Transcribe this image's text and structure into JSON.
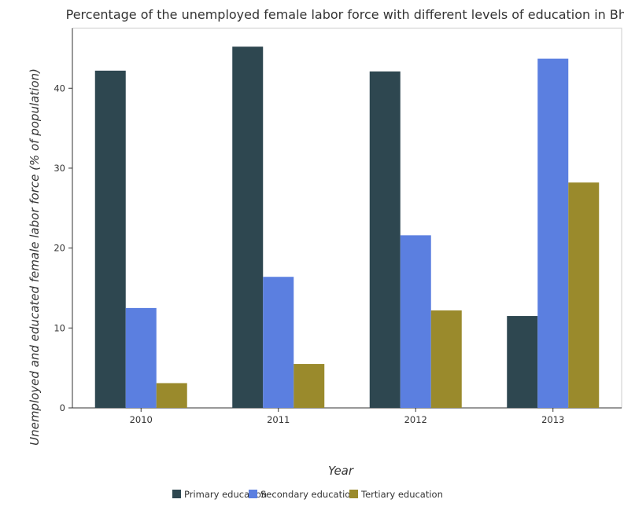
{
  "chart_data": {
    "type": "bar",
    "title": "Percentage of the unemployed female labor force with different levels of education in Bhutan",
    "xlabel": "Year",
    "ylabel": "Unemployed and educated female labor force (% of population)",
    "categories": [
      "2010",
      "2011",
      "2012",
      "2013"
    ],
    "series": [
      {
        "name": "Primary education",
        "color": "#2e4750",
        "values": [
          42.2,
          45.2,
          42.1,
          11.5
        ]
      },
      {
        "name": "Secondary education",
        "color": "#5b7fe0",
        "values": [
          12.5,
          16.4,
          21.6,
          43.7
        ]
      },
      {
        "name": "Tertiary education",
        "color": "#9a8a2c",
        "values": [
          3.1,
          5.5,
          12.2,
          28.2
        ]
      }
    ],
    "ylim": [
      0,
      47.5
    ],
    "yticks": [
      0,
      10,
      20,
      30,
      40
    ],
    "grid": false,
    "legend": "bottom"
  }
}
